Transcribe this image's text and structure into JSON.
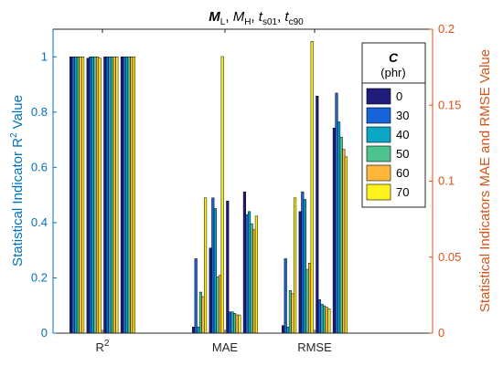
{
  "chart_data": {
    "type": "bar",
    "title": [
      "M",
      "L",
      ", ",
      "M",
      "H",
      ", ",
      "t",
      "s01",
      ", ",
      "t",
      "c90"
    ],
    "categories": [
      "R²",
      "MAE",
      "RMSE"
    ],
    "left_axis": {
      "label": "Statistical Indicator R² Value",
      "ylim": [
        0,
        1.1
      ],
      "ticks": [
        0,
        0.2,
        0.4,
        0.6,
        0.8,
        1
      ],
      "tick_labels": [
        "0",
        "0.2",
        "0.4",
        "0.6",
        "0.8",
        "1"
      ],
      "color": "#0072BD"
    },
    "right_axis": {
      "label": "Statistical Indicators MAE and RMSE Value",
      "ylim": [
        0,
        0.2
      ],
      "ticks": [
        0,
        0.05,
        0.1,
        0.15,
        0.2
      ],
      "tick_labels": [
        "0",
        "0.05",
        "0.1",
        "0.15",
        "0.2"
      ],
      "color": "#D95319"
    },
    "legend": {
      "title": "C",
      "subtitle": "(phr)",
      "placement": "top-right",
      "entries": [
        "0",
        "30",
        "40",
        "50",
        "60",
        "70"
      ]
    },
    "series_colors": [
      "#1F1C7C",
      "#1664D9",
      "#0AA7C7",
      "#4DC48C",
      "#FFB63A",
      "#FFF21C"
    ],
    "groups": [
      {
        "category": "R²",
        "axis": "left",
        "bar_sets": [
          [
            1.0,
            1.0,
            1.0,
            1.0,
            1.0,
            1.0
          ],
          [
            0.995,
            1.0,
            1.0,
            1.0,
            1.0,
            0.995
          ],
          [
            1.0,
            1.0,
            1.0,
            1.0,
            1.0,
            1.0
          ],
          [
            1.0,
            1.0,
            1.0,
            1.0,
            1.0,
            1.0
          ]
        ]
      },
      {
        "category": "MAE",
        "axis": "right",
        "bar_sets": [
          [
            0.004,
            0.049,
            0.004,
            0.027,
            0.024,
            0.089
          ],
          [
            0.056,
            0.089,
            0.082,
            0.037,
            0.038,
            0.182
          ],
          [
            0.087,
            0.014,
            0.014,
            0.013,
            0.012,
            0.012
          ],
          [
            0.093,
            0.078,
            0.08,
            0.072,
            0.068,
            0.077
          ]
        ]
      },
      {
        "category": "RMSE",
        "axis": "right",
        "bar_sets": [
          [
            0.005,
            0.049,
            0.004,
            0.028,
            0.026,
            0.089
          ],
          [
            0.08,
            0.093,
            0.088,
            0.042,
            0.046,
            0.192
          ],
          [
            0.156,
            0.022,
            0.019,
            0.018,
            0.017,
            0.016
          ],
          [
            0.135,
            0.158,
            0.139,
            0.129,
            0.121,
            0.116
          ]
        ]
      }
    ]
  }
}
